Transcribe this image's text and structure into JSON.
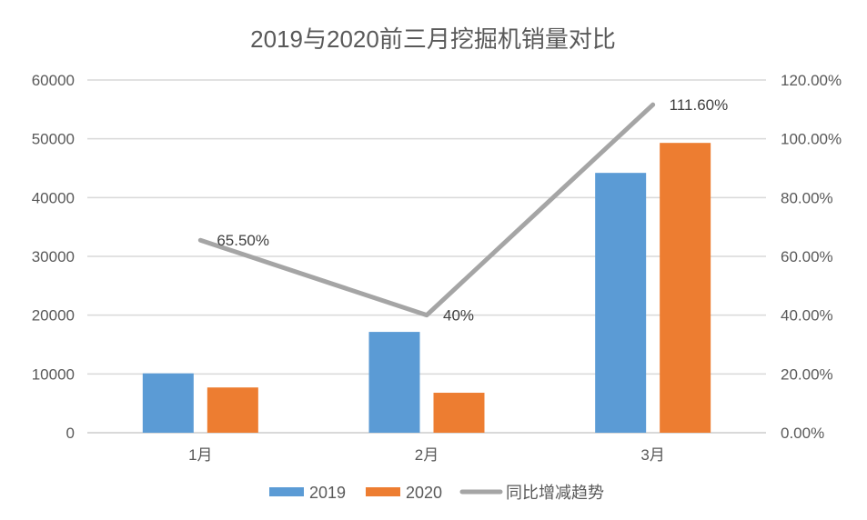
{
  "chart_data": {
    "type": "bar",
    "title": "2019与2020前三月挖掘机销量对比",
    "categories": [
      "1月",
      "2月",
      "3月"
    ],
    "series": [
      {
        "name": "2019",
        "type": "bar",
        "axis": "left",
        "color": "#5B9BD5",
        "values": [
          10100,
          17150,
          44200
        ]
      },
      {
        "name": "2020",
        "type": "bar",
        "axis": "left",
        "color": "#ED7D31",
        "values": [
          7700,
          6800,
          49300
        ]
      },
      {
        "name": "同比增减趋势",
        "type": "line",
        "axis": "right",
        "color": "#A5A5A5",
        "values": [
          65.5,
          40,
          111.6
        ],
        "data_labels": [
          "65.50%",
          "40%",
          "111.60%"
        ]
      }
    ],
    "ylim": [
      0,
      60000
    ],
    "yticks": [
      "0",
      "10000",
      "20000",
      "30000",
      "40000",
      "50000",
      "60000"
    ],
    "y2lim": [
      0,
      120
    ],
    "y2ticks": [
      "0.00%",
      "20.00%",
      "40.00%",
      "60.00%",
      "80.00%",
      "100.00%",
      "120.00%"
    ],
    "grid": true,
    "legend": "bottom"
  }
}
